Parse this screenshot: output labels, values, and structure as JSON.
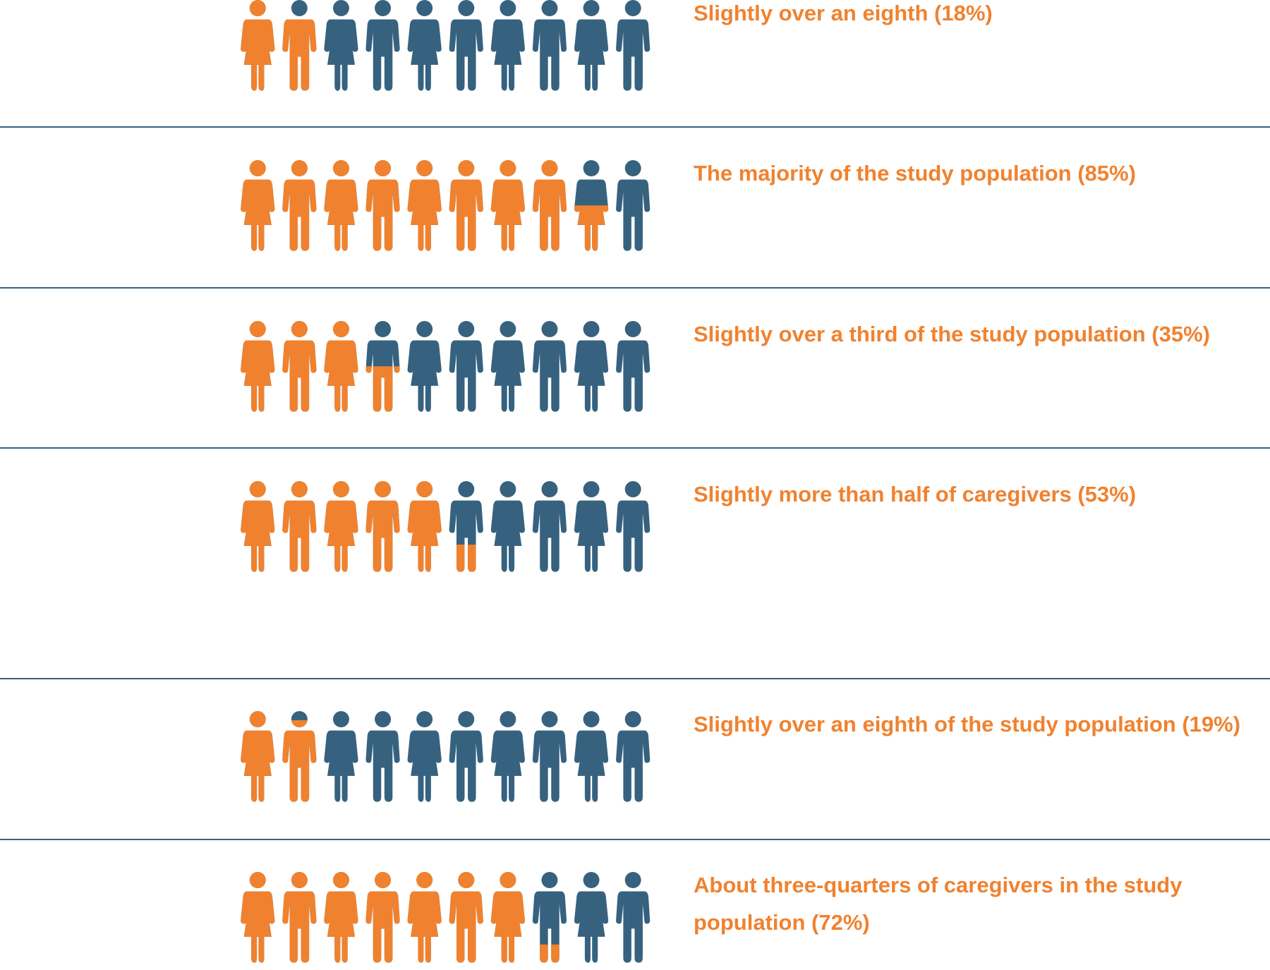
{
  "chart_data": {
    "type": "pictograph",
    "color": "#f0822f",
    "empty_color": "#36627f",
    "xlim": [
      0,
      100
    ],
    "rows": [
      {
        "label": "Slightly over an eighth (18%)",
        "value": 18
      },
      {
        "label": "The majority of the study population (85%)",
        "value": 85
      },
      {
        "label": "Slightly over a third of the study population (35%)",
        "value": 35
      },
      {
        "label": "Slightly more than half of caregivers (53%)",
        "value": 53
      },
      {
        "label": "Slightly over an eighth of the study population (19%)",
        "value": 19
      },
      {
        "label": "About three-quarters of caregivers in the study population (72%)",
        "value": 72
      }
    ]
  }
}
